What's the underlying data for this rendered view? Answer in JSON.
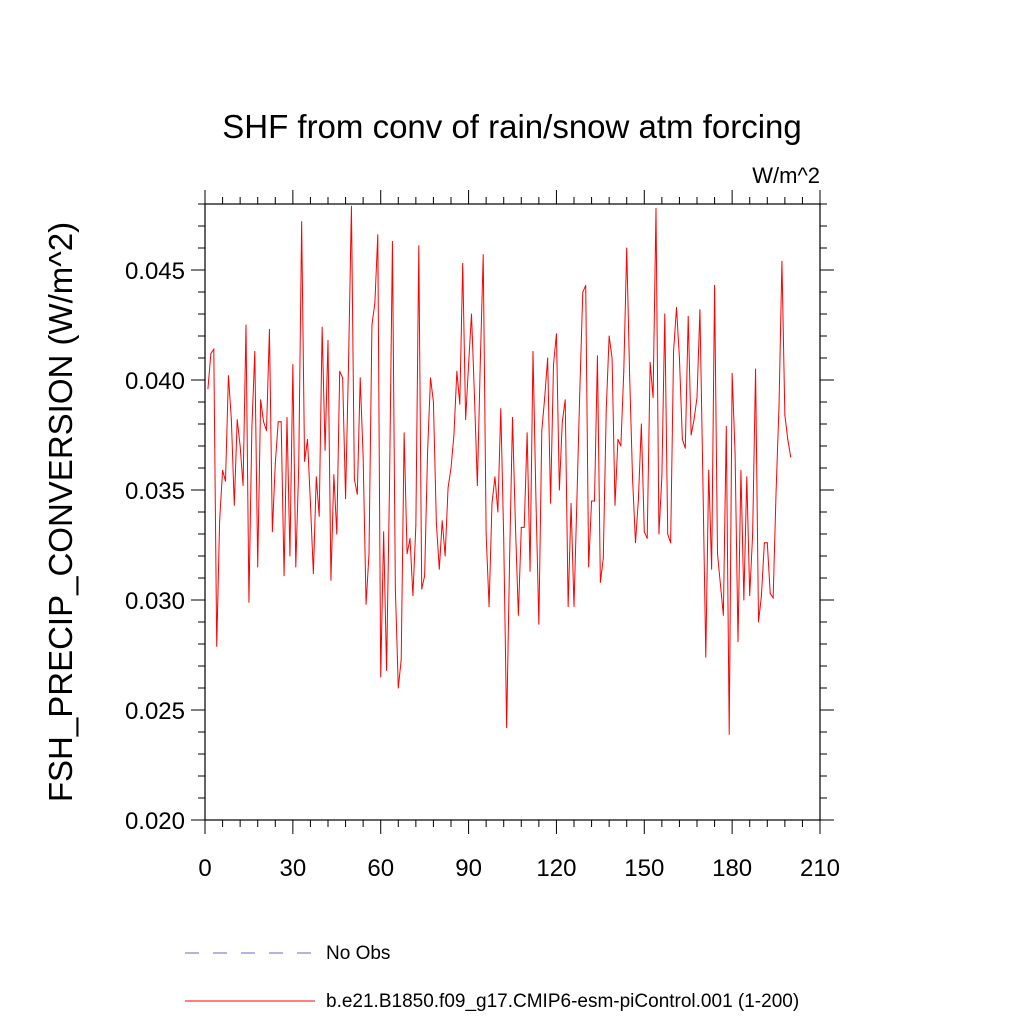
{
  "chart_data": {
    "type": "line",
    "title": "SHF from conv of rain/snow atm forcing",
    "units_label": "W/m^2",
    "xlabel": "",
    "ylabel": "FSH_PRECIP_CONVERSION  (W/m^2)",
    "xlim": [
      0,
      210
    ],
    "ylim": [
      0.02,
      0.048
    ],
    "x_ticks": [
      0,
      30,
      60,
      90,
      120,
      150,
      180,
      210
    ],
    "x_tick_labels": [
      "0",
      "30",
      "60",
      "90",
      "120",
      "150",
      "180",
      "210"
    ],
    "y_ticks": [
      0.02,
      0.025,
      0.03,
      0.035,
      0.04,
      0.045
    ],
    "y_tick_labels": [
      "0.020",
      "0.025",
      "0.030",
      "0.035",
      "0.040",
      "0.045"
    ],
    "grid": false,
    "legend": {
      "placement": "bottom",
      "entries": [
        {
          "label": "No Obs",
          "color": "#6666cc",
          "style": "dashed"
        },
        {
          "label": "b.e21.B1850.f09_g17.CMIP6-esm-piControl.001 (1-200)",
          "color": "#ff0000",
          "style": "solid"
        }
      ]
    },
    "series": [
      {
        "name": "b.e21.B1850.f09_g17.CMIP6-esm-piControl.001 (1-200)",
        "color": "#ff0000",
        "x_start": 1,
        "x_step": 1,
        "values": [
          0.0396,
          0.0412,
          0.0414,
          0.0279,
          0.0336,
          0.0359,
          0.0354,
          0.0402,
          0.0382,
          0.0343,
          0.0382,
          0.037,
          0.0352,
          0.0425,
          0.0299,
          0.0378,
          0.0413,
          0.0315,
          0.0391,
          0.0381,
          0.0377,
          0.0423,
          0.0331,
          0.0362,
          0.0381,
          0.0381,
          0.0311,
          0.0383,
          0.032,
          0.0407,
          0.0315,
          0.036,
          0.0472,
          0.0363,
          0.0373,
          0.0344,
          0.0312,
          0.0356,
          0.0338,
          0.0424,
          0.0368,
          0.0418,
          0.0309,
          0.0357,
          0.033,
          0.0404,
          0.0401,
          0.0346,
          0.0407,
          0.0479,
          0.0355,
          0.0348,
          0.0401,
          0.0365,
          0.0298,
          0.0321,
          0.0425,
          0.0435,
          0.0466,
          0.0265,
          0.0331,
          0.0268,
          0.0352,
          0.0463,
          0.0305,
          0.026,
          0.0273,
          0.0376,
          0.0321,
          0.0328,
          0.0302,
          0.0334,
          0.0461,
          0.0305,
          0.0311,
          0.0367,
          0.0401,
          0.039,
          0.0335,
          0.0314,
          0.0336,
          0.032,
          0.0351,
          0.036,
          0.0375,
          0.0404,
          0.0389,
          0.0453,
          0.0382,
          0.0407,
          0.043,
          0.0393,
          0.0352,
          0.0408,
          0.0457,
          0.033,
          0.0297,
          0.0344,
          0.0356,
          0.034,
          0.0387,
          0.0328,
          0.0242,
          0.0318,
          0.0383,
          0.0334,
          0.0293,
          0.0333,
          0.0333,
          0.0376,
          0.0313,
          0.0413,
          0.0346,
          0.0289,
          0.0377,
          0.0392,
          0.041,
          0.0344,
          0.0407,
          0.0421,
          0.035,
          0.0381,
          0.0391,
          0.0297,
          0.0344,
          0.0297,
          0.0346,
          0.0396,
          0.044,
          0.0443,
          0.0315,
          0.0345,
          0.0345,
          0.0411,
          0.0308,
          0.0319,
          0.0386,
          0.042,
          0.041,
          0.0343,
          0.0373,
          0.037,
          0.0404,
          0.046,
          0.0402,
          0.0355,
          0.0326,
          0.0346,
          0.038,
          0.0331,
          0.0328,
          0.0408,
          0.0392,
          0.0478,
          0.033,
          0.0356,
          0.043,
          0.033,
          0.0326,
          0.0413,
          0.0433,
          0.041,
          0.0373,
          0.0369,
          0.0429,
          0.0375,
          0.0382,
          0.0392,
          0.0432,
          0.0355,
          0.0274,
          0.0359,
          0.0314,
          0.0443,
          0.0321,
          0.0307,
          0.0293,
          0.0379,
          0.0239,
          0.0403,
          0.0367,
          0.0281,
          0.0359,
          0.03,
          0.0356,
          0.0302,
          0.033,
          0.0405,
          0.029,
          0.0302,
          0.0326,
          0.0326,
          0.0303,
          0.0301,
          0.0349,
          0.0388,
          0.0454,
          0.0384,
          0.0373,
          0.0365
        ]
      }
    ]
  }
}
